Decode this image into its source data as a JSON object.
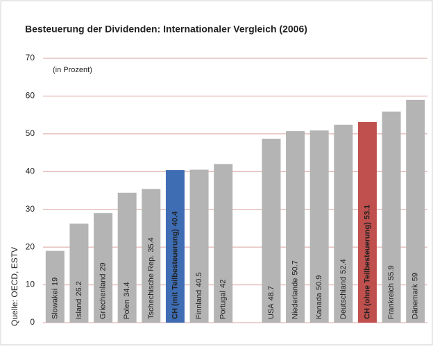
{
  "chart_data": {
    "type": "bar",
    "title": "Besteuerung der Dividenden: Internationaler Vergleich (2006)",
    "annotation": "(in Prozent)",
    "source": "Quelle: OECD, ESTV",
    "categories": [
      "Slowakei",
      "Island",
      "Griechenland",
      "Polen",
      "Tschechische Rep.",
      "CH (mit Teilbesteuerung)",
      "Finnland",
      "Portugal",
      null,
      "USA",
      "Niederlande",
      "Kanada",
      "Deutschland",
      "CH (ohne Teilbesteuerung)",
      "Frankreich",
      "Dänemark"
    ],
    "values": [
      19,
      26.2,
      29,
      34.4,
      35.4,
      40.4,
      40.5,
      42,
      null,
      48.7,
      50.7,
      50.9,
      52.4,
      53.1,
      55.9,
      59
    ],
    "color": "#b4b4b4",
    "colors": [
      "#b4b4b4",
      "#b4b4b4",
      "#b4b4b4",
      "#b4b4b4",
      "#b4b4b4",
      "#3e6db4",
      "#b4b4b4",
      "#b4b4b4",
      "#b4b4b4",
      "#b4b4b4",
      "#b4b4b4",
      "#b4b4b4",
      "#b4b4b4",
      "#c0504d",
      "#b4b4b4",
      "#b4b4b4"
    ],
    "ylim": [
      0,
      70
    ],
    "yticks": [
      0,
      10,
      20,
      30,
      40,
      50,
      60,
      70
    ],
    "grid": true
  }
}
